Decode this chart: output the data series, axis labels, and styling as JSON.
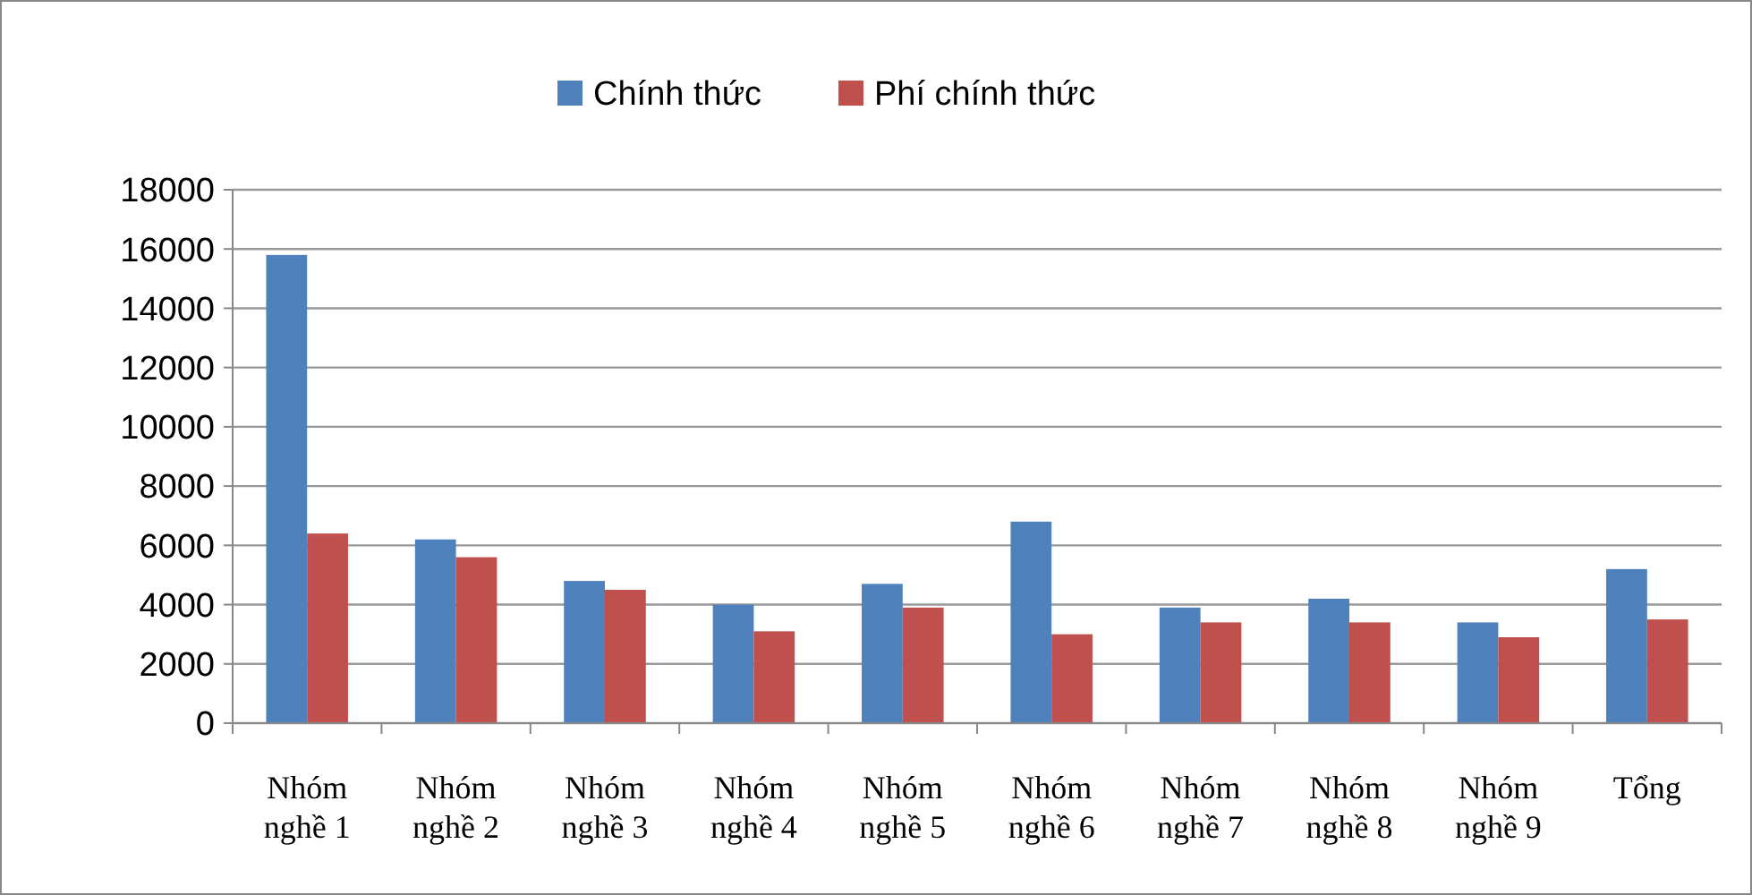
{
  "chart_data": {
    "type": "bar",
    "categories": [
      "Nhóm nghề 1",
      "Nhóm nghề 2",
      "Nhóm nghề 3",
      "Nhóm nghề 4",
      "Nhóm nghề 5",
      "Nhóm nghề 6",
      "Nhóm nghề 7",
      "Nhóm nghề 8",
      "Nhóm nghề 9",
      "Tổng"
    ],
    "series": [
      {
        "name": "Chính thức",
        "color": "#4f81bd",
        "values": [
          15800,
          6200,
          4800,
          4000,
          4700,
          6800,
          3900,
          4200,
          3400,
          5200
        ]
      },
      {
        "name": "Phí chính thức",
        "color": "#c0504d",
        "values": [
          6400,
          5600,
          4500,
          3100,
          3900,
          3000,
          3400,
          3400,
          2900,
          3500
        ]
      }
    ],
    "ylim": [
      0,
      18000
    ],
    "yticks": [
      0,
      2000,
      4000,
      6000,
      8000,
      10000,
      12000,
      14000,
      16000,
      18000
    ],
    "grid": "y",
    "legend": "top"
  }
}
